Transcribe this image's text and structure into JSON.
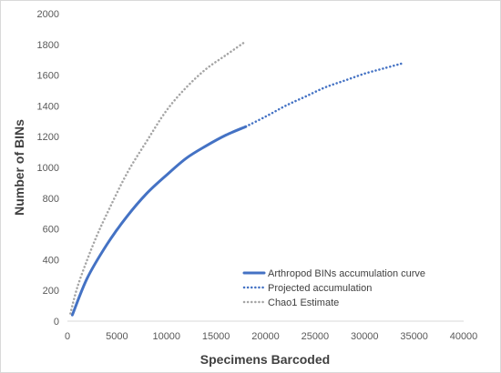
{
  "chart_data": {
    "type": "line",
    "xlabel": "Specimens Barcoded",
    "ylabel": "Number of BINs",
    "xlim": [
      0,
      40000
    ],
    "ylim": [
      0,
      2000
    ],
    "x_ticks": [
      "0",
      "5000",
      "10000",
      "15000",
      "20000",
      "25000",
      "30000",
      "35000",
      "40000"
    ],
    "y_ticks": [
      "0",
      "200",
      "400",
      "600",
      "800",
      "1000",
      "1200",
      "1400",
      "1600",
      "1800",
      "2000"
    ],
    "grid": false,
    "legend_position": "bottom-right",
    "series": [
      {
        "name": "Arthropod BINs accumulation curve",
        "style": "solid",
        "color": "#4472c4",
        "x": [
          500,
          2000,
          4000,
          6000,
          8000,
          10000,
          12000,
          14000,
          16000,
          18000
        ],
        "y": [
          40,
          280,
          500,
          680,
          830,
          950,
          1060,
          1140,
          1210,
          1265
        ]
      },
      {
        "name": "Projected accumulation",
        "style": "dotted",
        "color": "#4472c4",
        "x": [
          18000,
          20000,
          22000,
          24000,
          26000,
          28000,
          30000,
          32000,
          34000
        ],
        "y": [
          1265,
          1330,
          1400,
          1460,
          1520,
          1565,
          1610,
          1645,
          1680
        ]
      },
      {
        "name": "Chao1 Estimate",
        "style": "dotted",
        "color": "#a5a5a5",
        "x": [
          300,
          1000,
          2000,
          3000,
          4000,
          6000,
          8000,
          10000,
          12000,
          14000,
          16000,
          18000
        ],
        "y": [
          50,
          220,
          400,
          560,
          700,
          960,
          1170,
          1370,
          1520,
          1640,
          1730,
          1820
        ]
      }
    ]
  }
}
